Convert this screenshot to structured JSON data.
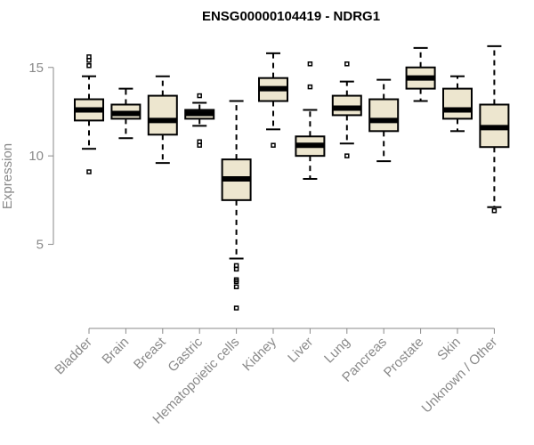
{
  "chart_data": {
    "type": "boxplot",
    "title": "ENSG00000104419 - NDRG1",
    "xlabel": "",
    "ylabel": "Expression",
    "ylim": [
      0.5,
      17
    ],
    "yticks": [
      5,
      10,
      15
    ],
    "box_color": "#ede6cf",
    "categories": [
      "Bladder",
      "Brain",
      "Breast",
      "Gastric",
      "Hematopoietic cells",
      "Kidney",
      "Liver",
      "Lung",
      "Pancreas",
      "Prostate",
      "Skin",
      "Unknown / Other"
    ],
    "series": [
      {
        "category": "Bladder",
        "whisker_low": 10.4,
        "q1": 12.0,
        "median": 12.6,
        "q3": 13.2,
        "whisker_high": 14.5,
        "outliers": [
          9.1,
          15.1,
          15.4,
          15.6
        ]
      },
      {
        "category": "Brain",
        "whisker_low": 11.0,
        "q1": 12.1,
        "median": 12.4,
        "q3": 12.9,
        "whisker_high": 13.8,
        "outliers": []
      },
      {
        "category": "Breast",
        "whisker_low": 9.6,
        "q1": 11.2,
        "median": 12.0,
        "q3": 13.4,
        "whisker_high": 14.5,
        "outliers": []
      },
      {
        "category": "Gastric",
        "whisker_low": 11.7,
        "q1": 12.1,
        "median": 12.4,
        "q3": 12.6,
        "whisker_high": 13.0,
        "outliers": [
          10.6,
          10.8,
          13.4
        ]
      },
      {
        "category": "Hematopoietic cells",
        "whisker_low": 4.2,
        "q1": 7.5,
        "median": 8.7,
        "q3": 9.8,
        "whisker_high": 13.1,
        "outliers": [
          1.4,
          2.6,
          2.9,
          3.0,
          3.6,
          3.8
        ]
      },
      {
        "category": "Kidney",
        "whisker_low": 11.5,
        "q1": 13.1,
        "median": 13.8,
        "q3": 14.4,
        "whisker_high": 15.8,
        "outliers": [
          10.6
        ]
      },
      {
        "category": "Liver",
        "whisker_low": 8.7,
        "q1": 10.0,
        "median": 10.6,
        "q3": 11.1,
        "whisker_high": 12.6,
        "outliers": [
          13.9,
          15.2
        ]
      },
      {
        "category": "Lung",
        "whisker_low": 10.7,
        "q1": 12.3,
        "median": 12.7,
        "q3": 13.4,
        "whisker_high": 14.2,
        "outliers": [
          10.0,
          15.2
        ]
      },
      {
        "category": "Pancreas",
        "whisker_low": 9.7,
        "q1": 11.4,
        "median": 12.0,
        "q3": 13.2,
        "whisker_high": 14.3,
        "outliers": []
      },
      {
        "category": "Prostate",
        "whisker_low": 13.1,
        "q1": 13.8,
        "median": 14.4,
        "q3": 15.0,
        "whisker_high": 16.1,
        "outliers": []
      },
      {
        "category": "Skin",
        "whisker_low": 11.4,
        "q1": 12.1,
        "median": 12.6,
        "q3": 13.8,
        "whisker_high": 14.5,
        "outliers": []
      },
      {
        "category": "Unknown / Other",
        "whisker_low": 7.1,
        "q1": 10.5,
        "median": 11.6,
        "q3": 12.9,
        "whisker_high": 16.2,
        "outliers": [
          6.9
        ]
      }
    ]
  }
}
